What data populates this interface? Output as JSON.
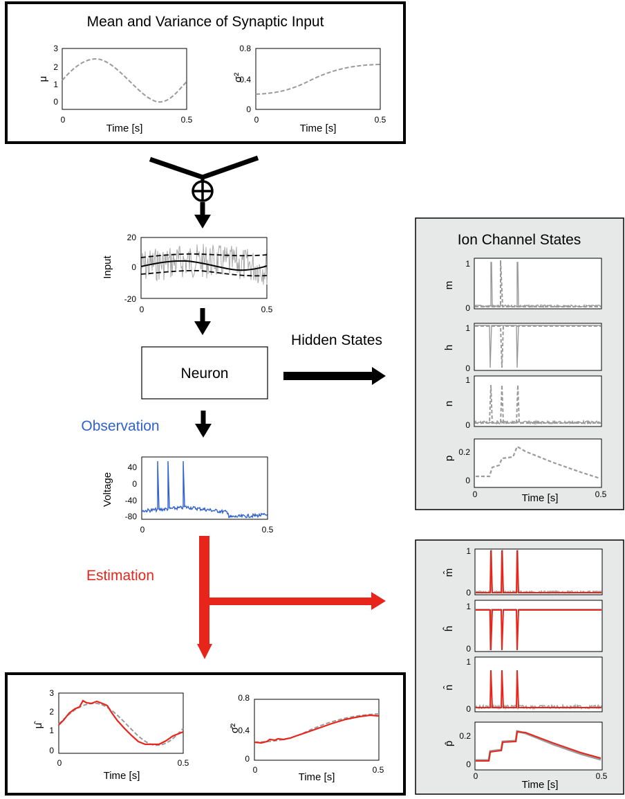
{
  "top_panel": {
    "title": "Mean and Variance of Synaptic Input",
    "mu_plot": {
      "ylabel": "μ",
      "xlabel": "Time [s]",
      "yticks": [
        "3",
        "2",
        "1",
        "0"
      ],
      "xticks": [
        "0",
        "0.5"
      ]
    },
    "var_plot": {
      "ylabel": "σ²",
      "xlabel": "Time [s]",
      "yticks": [
        "0.8",
        "0.4",
        "0"
      ],
      "xticks": [
        "0",
        "0.5"
      ]
    }
  },
  "input_plot": {
    "ylabel": "Input",
    "yticks": [
      "20",
      "0",
      "-20"
    ],
    "xticks": [
      "0",
      "0.5"
    ]
  },
  "neuron_label": "Neuron",
  "hidden_states_label": "Hidden States",
  "observation_label": "Observation",
  "estimation_label": "Estimation",
  "voltage_plot": {
    "ylabel": "Voltage",
    "yticks": [
      "40",
      "0",
      "-40",
      "-80"
    ],
    "xticks": [
      "0",
      "0.5"
    ]
  },
  "ion_panel": {
    "title": "Ion Channel States",
    "m": {
      "ylabel": "m",
      "yticks": [
        "1",
        "0"
      ]
    },
    "h": {
      "ylabel": "h",
      "yticks": [
        "1",
        "0"
      ]
    },
    "n": {
      "ylabel": "n",
      "yticks": [
        "1",
        "0"
      ]
    },
    "p": {
      "ylabel": "p",
      "yticks": [
        "0.2",
        "0"
      ]
    },
    "xlabel": "Time [s]",
    "xticks": [
      "0",
      "0.5"
    ]
  },
  "est_panel": {
    "m": {
      "ylabel": "m̂",
      "yticks": [
        "1",
        "0"
      ]
    },
    "h": {
      "ylabel": "ĥ",
      "yticks": [
        "1",
        "0"
      ]
    },
    "n": {
      "ylabel": "n̂",
      "yticks": [
        "1",
        "0"
      ]
    },
    "p": {
      "ylabel": "p̂",
      "yticks": [
        "0.2",
        "0"
      ]
    },
    "xlabel": "Time [s]",
    "xticks": [
      "0",
      "0.5"
    ]
  },
  "bottom_panel": {
    "mu_plot": {
      "ylabel": "μ̂",
      "xlabel": "Time [s]",
      "yticks": [
        "3",
        "2",
        "1",
        "0"
      ],
      "xticks": [
        "0",
        "0.5"
      ]
    },
    "var_plot": {
      "ylabel": "σ̂²",
      "xlabel": "Time [s]",
      "yticks": [
        "0.8",
        "0.4",
        "0"
      ],
      "xticks": [
        "0",
        "0.5"
      ]
    }
  },
  "colors": {
    "observation": "#2f5fd0",
    "estimation": "#e8251a",
    "true_trace": "#9a9a9a",
    "panel_bg": "#e6e9e8"
  }
}
